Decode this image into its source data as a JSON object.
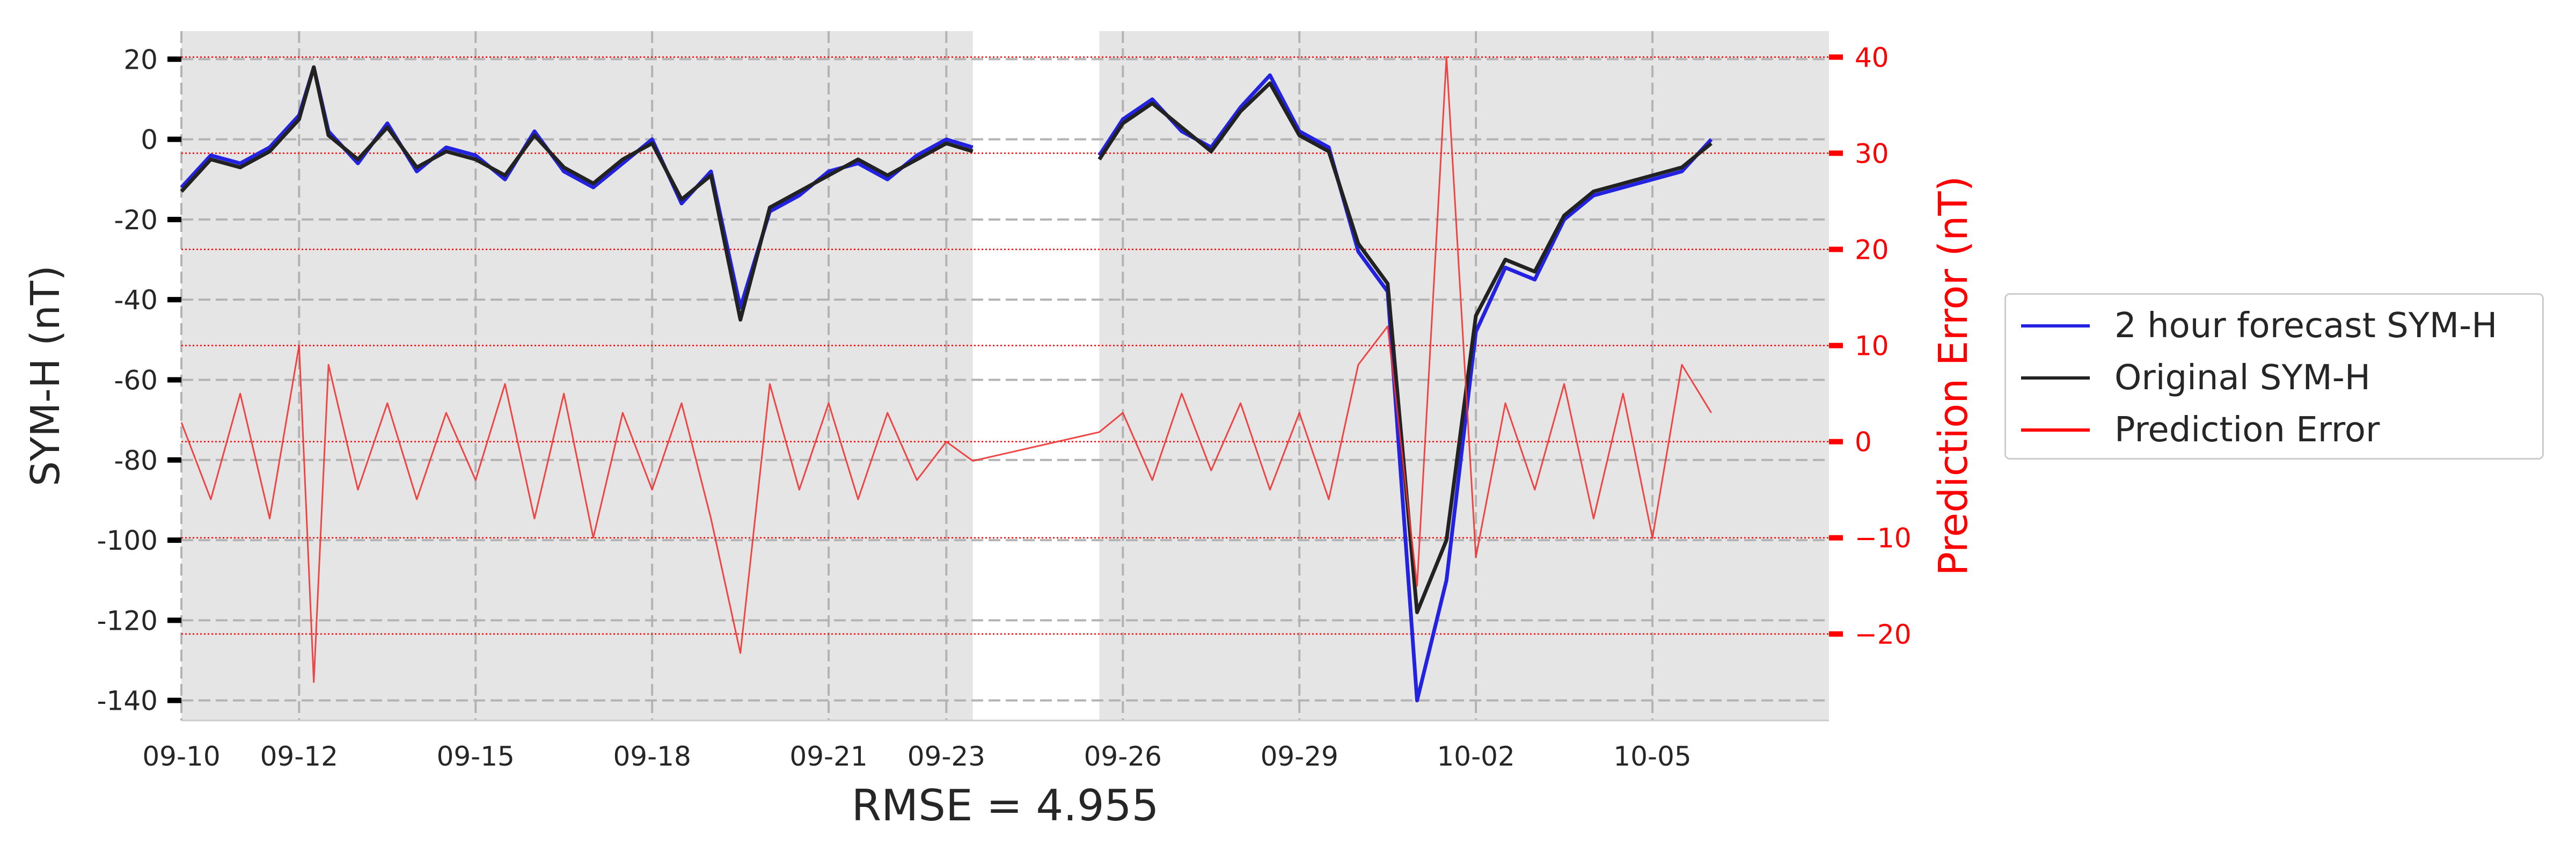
{
  "chart_data": {
    "type": "line",
    "xlabel": "RMSE = 4.955",
    "ylabel": "SYM-H (nT)",
    "y2label": "Prediction Error (nT)",
    "x_ticks": [
      "09-10",
      "09-12",
      "09-15",
      "09-18",
      "09-21",
      "09-23",
      "09-26",
      "09-29",
      "10-02",
      "10-05"
    ],
    "x_tick_days": [
      0,
      2,
      5,
      8,
      11,
      13,
      16,
      19,
      22,
      25
    ],
    "xlim_days": [
      0,
      28
    ],
    "ylim": [
      -145,
      27
    ],
    "y_ticks": [
      20,
      0,
      -20,
      -40,
      -60,
      -80,
      -100,
      -120,
      -140
    ],
    "y2lim": [
      -29,
      42.7
    ],
    "y2_ticks": [
      40,
      30,
      20,
      10,
      0,
      -10,
      -20
    ],
    "y2_tick_labels": [
      "40",
      "30",
      "20",
      "10",
      "0",
      "−10",
      "−20"
    ],
    "grid": true,
    "legend_placement": "outside right",
    "data_gap_days": [
      13.45,
      15.6
    ],
    "colors": {
      "forecast": "#2222e0",
      "original": "#222222",
      "error": "#ee3333",
      "error_axis": "#ff0000",
      "background": "#e5e5e5"
    },
    "x": [
      0,
      0.5,
      1,
      1.5,
      2,
      2.25,
      2.5,
      3,
      3.5,
      4,
      4.5,
      5,
      5.5,
      6,
      6.5,
      7,
      7.5,
      8,
      8.5,
      9,
      9.5,
      10,
      10.5,
      11,
      11.5,
      12,
      12.5,
      13,
      13.45,
      15.6,
      16,
      16.5,
      17,
      17.5,
      18,
      18.5,
      19,
      19.5,
      20,
      20.5,
      21,
      21.5,
      22,
      22.5,
      23,
      23.5,
      24,
      24.5,
      25,
      25.5,
      26
    ],
    "series": [
      {
        "name": "2 hour forecast SYM-H",
        "values": [
          -12,
          -4,
          -6,
          -2,
          6,
          18,
          2,
          -6,
          4,
          -8,
          -2,
          -4,
          -10,
          2,
          -8,
          -12,
          -6,
          0,
          -16,
          -8,
          -42,
          -18,
          -14,
          -8,
          -6,
          -10,
          -4,
          0,
          -2,
          -4,
          5,
          10,
          2,
          -2,
          8,
          16,
          2,
          -2,
          -28,
          -38,
          -140,
          -110,
          -48,
          -32,
          -35,
          -20,
          -14,
          -12,
          -10,
          -8,
          0
        ]
      },
      {
        "name": "Original SYM-H",
        "values": [
          -13,
          -5,
          -7,
          -3,
          5,
          18,
          1,
          -5,
          3,
          -7,
          -3,
          -5,
          -9,
          1,
          -7,
          -11,
          -5,
          -1,
          -15,
          -9,
          -45,
          -17,
          -13,
          -9,
          -5,
          -9,
          -5,
          -1,
          -3,
          -5,
          4,
          9,
          3,
          -3,
          7,
          14,
          1,
          -3,
          -26,
          -36,
          -118,
          -100,
          -44,
          -30,
          -33,
          -19,
          -13,
          -11,
          -9,
          -7,
          -1
        ]
      },
      {
        "name": "Prediction Error",
        "axis": "right",
        "values": [
          2,
          -6,
          5,
          -8,
          10,
          -25,
          8,
          -5,
          4,
          -6,
          3,
          -4,
          6,
          -8,
          5,
          -10,
          3,
          -5,
          4,
          -8,
          -22,
          6,
          -5,
          4,
          -6,
          3,
          -4,
          0,
          -2,
          1,
          3,
          -4,
          5,
          -3,
          4,
          -5,
          3,
          -6,
          8,
          12,
          -15,
          40,
          -12,
          4,
          -5,
          6,
          -8,
          5,
          -10,
          8,
          3
        ]
      }
    ]
  }
}
